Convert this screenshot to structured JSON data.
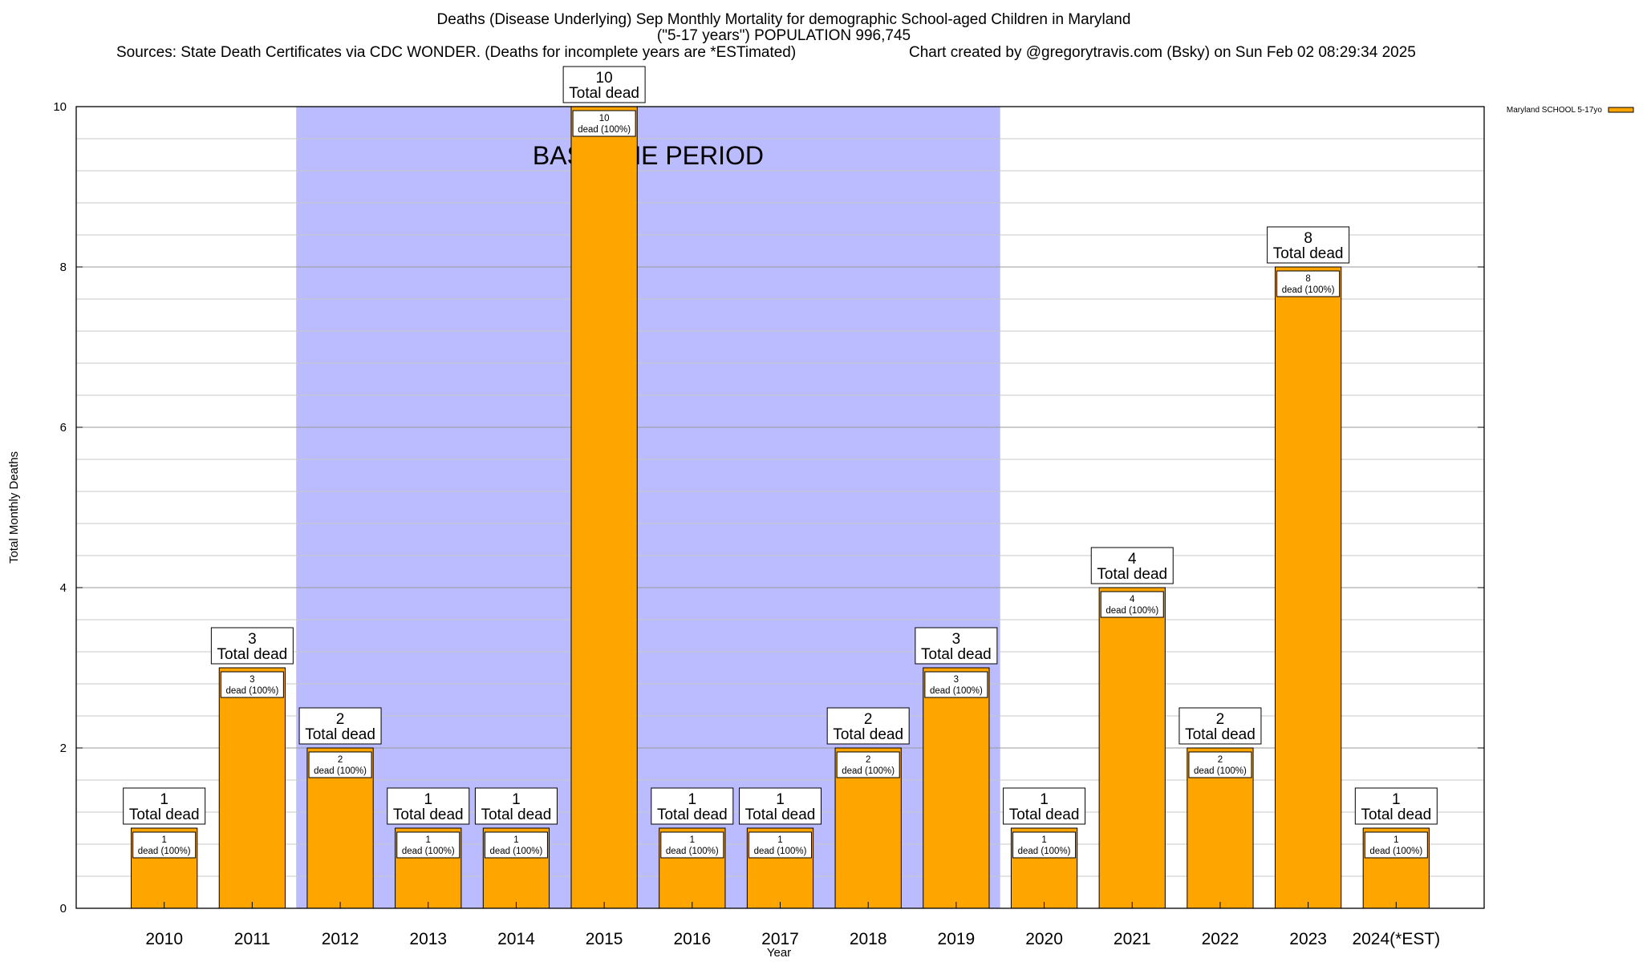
{
  "chart_data": {
    "type": "bar",
    "title_lines": [
      "Deaths (Disease Underlying) Sep Monthly Mortality for demographic School-aged Children in Maryland",
      "(\"5-17 years\") POPULATION 996,745"
    ],
    "sources": "Sources: State Death Certificates via CDC WONDER. (Deaths for incomplete years are *ESTimated)",
    "credit": "Chart created by @gregorytravis.com (Bsky) on Sun Feb 02 08:29:34 2025",
    "xlabel": "Year",
    "ylabel": "Total Monthly Deaths",
    "ylim": [
      0,
      10
    ],
    "yticks": [
      0,
      2,
      4,
      6,
      8,
      10
    ],
    "minor_gridlines": true,
    "legend": {
      "label": "Maryland SCHOOL 5-17yo",
      "color": "#FFA500",
      "position": "top-right"
    },
    "baseline": {
      "label": "BASELINE PERIOD",
      "from": "2012",
      "to": "2019",
      "color": "#BBBBFF"
    },
    "categories": [
      "2010",
      "2011",
      "2012",
      "2013",
      "2014",
      "2015",
      "2016",
      "2017",
      "2018",
      "2019",
      "2020",
      "2021",
      "2022",
      "2023",
      "2024(*EST)"
    ],
    "series": [
      {
        "name": "Maryland SCHOOL 5-17yo",
        "color": "#FFA500",
        "values": [
          1,
          3,
          2,
          1,
          1,
          10,
          1,
          1,
          2,
          3,
          1,
          4,
          2,
          8,
          1
        ]
      }
    ],
    "total_label": "Total dead",
    "inner_label": "dead (100%)"
  }
}
